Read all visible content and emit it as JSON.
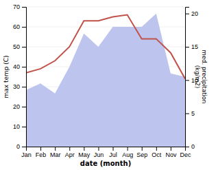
{
  "chart_data": {
    "type": "line",
    "categories": [
      "Jan",
      "Feb",
      "Mar",
      "Apr",
      "May",
      "Jun",
      "Jul",
      "Aug",
      "Sep",
      "Oct",
      "Nov",
      "Dec"
    ],
    "series": [
      {
        "type": "area",
        "axis": "y2",
        "color": "#bdc5ee",
        "values": [
          8.5,
          9.5,
          8.0,
          12,
          17,
          15,
          18,
          18,
          18,
          20,
          11,
          10.5
        ]
      },
      {
        "type": "line",
        "color": "#c0524a",
        "values": [
          37,
          39,
          43,
          50,
          63,
          63,
          65,
          66,
          54,
          54,
          47,
          34
        ]
      }
    ],
    "x_label": "date (month)",
    "y_label": "max temp (C)",
    "y2_label": "med. precipitation\n(kg/m2)",
    "ylim": [
      0,
      70
    ],
    "yticks": [
      0,
      10,
      20,
      30,
      40,
      50,
      60,
      70
    ],
    "y2lim": [
      0,
      21
    ],
    "y2ticks": [
      0,
      5,
      10,
      15,
      20
    ],
    "grid": true
  }
}
